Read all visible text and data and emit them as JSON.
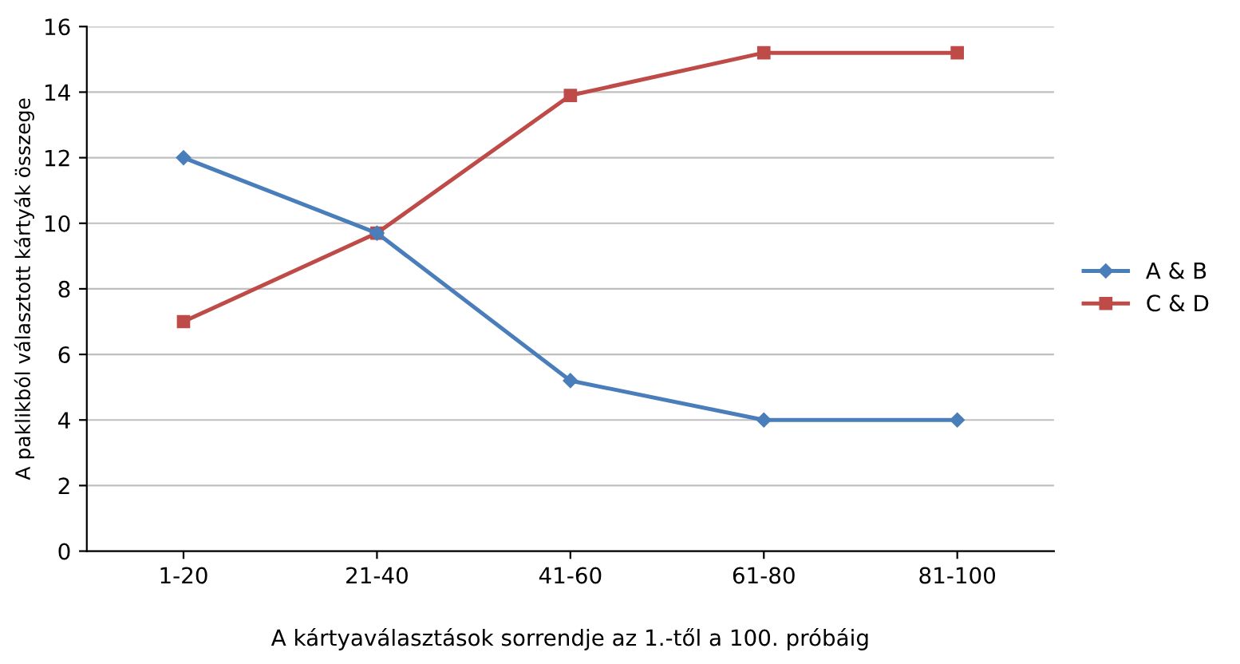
{
  "chart_data": {
    "type": "line",
    "categories": [
      "1-20",
      "21-40",
      "41-60",
      "61-80",
      "81-100"
    ],
    "series": [
      {
        "name": "A & B",
        "color": "#4a7ebb",
        "marker": "diamond",
        "values": [
          12,
          9.7,
          5.2,
          4,
          4
        ]
      },
      {
        "name": "C & D",
        "color": "#be4b48",
        "marker": "square",
        "values": [
          7,
          9.7,
          13.9,
          15.2,
          15.2
        ]
      }
    ],
    "xlabel": "A kártyaválasztások sorrendje az 1.-től a 100. próbáig",
    "ylabel": "A paklikból választott kártyák összege",
    "ylim": [
      0,
      16
    ],
    "yticks": [
      0,
      2,
      4,
      6,
      8,
      10,
      12,
      14,
      16
    ],
    "grid": "y",
    "legend": "right",
    "line_style": "solid"
  }
}
